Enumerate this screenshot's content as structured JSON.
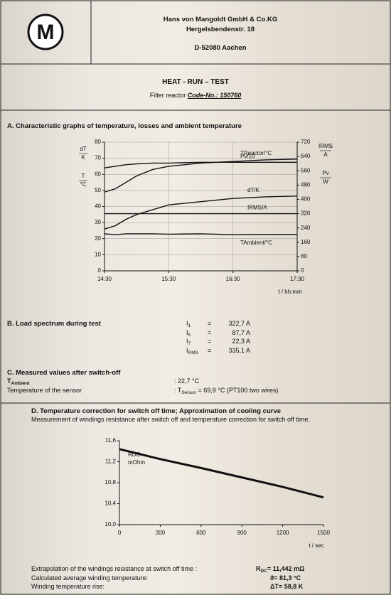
{
  "header": {
    "company": "Hans von Mangoldt GmbH & Co.KG",
    "street": "Hergelsbendenstr. 18",
    "city": "D-52080 Aachen",
    "logo": "M"
  },
  "title": {
    "text": "HEAT - RUN – TEST",
    "subtitle_prefix": "Filter reactor",
    "code": "Code-No.: 150760"
  },
  "section_a": {
    "heading": "A. Characteristic graphs of temperature, losses and ambient temperature"
  },
  "section_b": {
    "heading": "B. Load spectrum during test",
    "equals": "=",
    "rows": [
      {
        "symbol": "I",
        "sub": "1",
        "value": "322,7 A"
      },
      {
        "symbol": "I",
        "sub": "5",
        "value": "87,7 A"
      },
      {
        "symbol": "I",
        "sub": "7",
        "value": "22,3 A"
      },
      {
        "symbol": "I",
        "sub": "RMS",
        "value": "335,1 A"
      }
    ]
  },
  "section_c": {
    "heading": "C. Measured values after switch-off",
    "ambient": {
      "symbol": "T",
      "sub": "Ambient",
      "value": ": 22,7 °C"
    },
    "sensor": {
      "label": "Temperature of the sensor",
      "prefix": ": T",
      "sub": "Sensor",
      "value": "= 69,9 °C (PT100 two wires)"
    }
  },
  "section_d": {
    "heading": "D. Temperature correction for switch off time; Approximation of cooling curve",
    "subtitle": "Measurement of windings resistance after switch off and temperature correction for switch off time.",
    "results": [
      {
        "label": "Extrapolation of the windings resistance at switch off time :",
        "symbol": "R",
        "sub": "DC",
        "value": "= 11,442 mΩ"
      },
      {
        "label": "Calculated average winding temperature:",
        "symbol": "ϑ",
        "sub": "",
        "value": "= 81,3 °C"
      },
      {
        "label": "Winding temperature rise:",
        "symbol": "ΔT",
        "sub": "",
        "value": "= 58,8 K"
      }
    ]
  },
  "chart_data": [
    {
      "type": "line",
      "xlabel": "t / hh:mm",
      "left_labels": [
        {
          "num": "dT",
          "den": "K"
        },
        {
          "num": "T",
          "den": "°C"
        }
      ],
      "right_labels": [
        {
          "num": "IRMS",
          "den": "A"
        },
        {
          "num": "Pv",
          "den": "W"
        }
      ],
      "x": [
        0,
        10,
        20,
        30,
        45,
        60,
        90,
        120,
        150,
        180
      ],
      "xlim": [
        0,
        180
      ],
      "xticks": [
        {
          "value": 0,
          "label": "14:30"
        },
        {
          "value": 60,
          "label": "15:30"
        },
        {
          "value": 120,
          "label": "16:30"
        },
        {
          "value": 180,
          "label": "17:30"
        }
      ],
      "ylim": [
        0,
        80
      ],
      "yticks": [
        0,
        10,
        20,
        30,
        40,
        50,
        60,
        70,
        80
      ],
      "y2lim": [
        0,
        720
      ],
      "y2ticks": [
        0,
        80,
        160,
        240,
        320,
        400,
        480,
        560,
        640,
        720
      ],
      "grid": true,
      "series": [
        {
          "name": "TReactor/°C",
          "color": "#111111",
          "values": [
            49,
            51,
            55,
            59,
            63,
            65,
            67,
            68,
            69,
            69.5
          ]
        },
        {
          "name": "Pv/10",
          "color": "#111111",
          "values": [
            64,
            65,
            66,
            66.5,
            67,
            67,
            67.5,
            67.5,
            67.5,
            67.5
          ]
        },
        {
          "name": "dT/K",
          "color": "#111111",
          "values": [
            26,
            28,
            32,
            35,
            38,
            41,
            43,
            45,
            46,
            46.5
          ]
        },
        {
          "name": "IRMS/A",
          "color": "#111111",
          "axis": "y2",
          "values": [
            320,
            320,
            320,
            320,
            320,
            320,
            320,
            320,
            320,
            320
          ]
        },
        {
          "name": "TAmbient/°C",
          "color": "#111111",
          "values": [
            23,
            22.5,
            23,
            23,
            23,
            22.8,
            23,
            22.5,
            22.7,
            22.7
          ]
        }
      ]
    },
    {
      "type": "line",
      "xlabel": "t / sec",
      "ylabel_lines": [
        "RDC",
        "mOhm"
      ],
      "x": [
        0,
        300,
        600,
        900,
        1200,
        1500
      ],
      "values": [
        11.44,
        11.25,
        11.08,
        10.9,
        10.72,
        10.52
      ],
      "color": "#111111",
      "xlim": [
        0,
        1500
      ],
      "xticks": [
        0,
        300,
        600,
        900,
        1200,
        1500
      ],
      "ylim": [
        10,
        11.6
      ],
      "yticks": [
        {
          "value": 10,
          "label": "10,0"
        },
        {
          "value": 10.4,
          "label": "10,4"
        },
        {
          "value": 10.8,
          "label": "10,8"
        },
        {
          "value": 11.2,
          "label": "11,2"
        },
        {
          "value": 11.6,
          "label": "11,6"
        }
      ],
      "grid": false
    }
  ]
}
